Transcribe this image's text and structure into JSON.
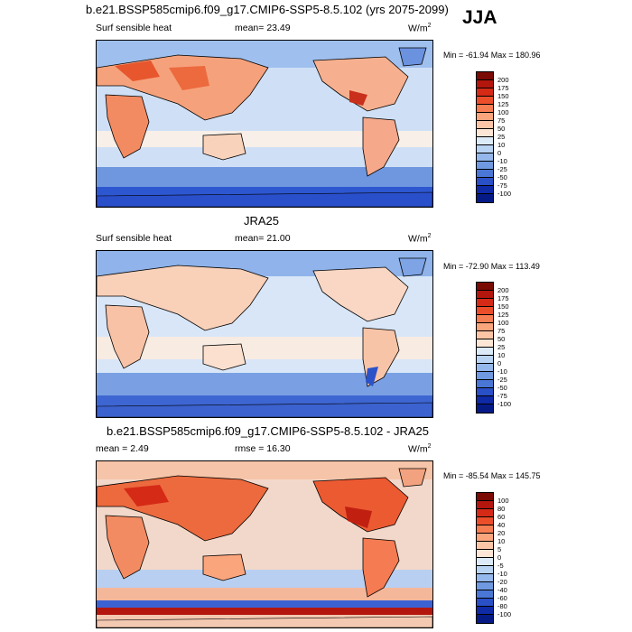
{
  "season": "JJA",
  "panels": [
    {
      "title": "b.e21.BSSP585cmip6.f09_g17.CMIP6-SSP5-8.5.102 (yrs 2075-2099)",
      "variable": "Surf sensible heat",
      "stat": "mean=  23.49",
      "units": "W/m",
      "units_sup": "2",
      "minmax": "Min = -61.94 Max = 180.96",
      "cbar_labels": [
        "200",
        "175",
        "150",
        "125",
        "100",
        "75",
        "50",
        "25",
        "10",
        "0",
        "-10",
        "-25",
        "-50",
        "-75",
        "-100"
      ]
    },
    {
      "title": "JRA25",
      "variable": "Surf sensible heat",
      "stat": "mean=  21.00",
      "units": "W/m",
      "units_sup": "2",
      "minmax": "Min = -72.90 Max = 113.49",
      "cbar_labels": [
        "200",
        "175",
        "150",
        "125",
        "100",
        "75",
        "50",
        "25",
        "10",
        "0",
        "-10",
        "-25",
        "-50",
        "-75",
        "-100"
      ]
    },
    {
      "title": "b.e21.BSSP585cmip6.f09_g17.CMIP6-SSP5-8.5.102 - JRA25",
      "variable": "mean =   2.49",
      "stat": "rmse =  16.30",
      "units": "W/m",
      "units_sup": "2",
      "minmax": "Min = -85.54 Max = 145.75",
      "cbar_labels": [
        "100",
        "80",
        "60",
        "40",
        "20",
        "10",
        "5",
        "0",
        "-5",
        "-10",
        "-20",
        "-40",
        "-60",
        "-80",
        "-100"
      ]
    }
  ],
  "colors": {
    "cbar_main": [
      "#7a0a04",
      "#b3160d",
      "#d52a16",
      "#ec4e2a",
      "#f77d52",
      "#fba57d",
      "#fcc6a6",
      "#fde6d5",
      "#ddeaf8",
      "#b9d3f3",
      "#94b8ec",
      "#6f9ae2",
      "#4a77d6",
      "#2a50c7",
      "#0f2aa6",
      "#061a86"
    ],
    "cbar_diff": [
      "#7a0a04",
      "#b3160d",
      "#d52a16",
      "#ec4e2a",
      "#f77d52",
      "#fba57d",
      "#fcc6a6",
      "#fde6d5",
      "#ddeaf8",
      "#b9d3f3",
      "#94b8ec",
      "#6f9ae2",
      "#4a77d6",
      "#2a50c7",
      "#0f2aa6",
      "#061a86"
    ]
  }
}
